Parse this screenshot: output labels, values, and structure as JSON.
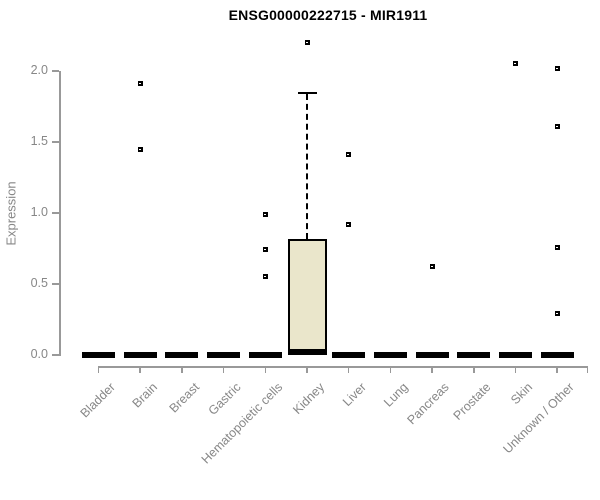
{
  "chart_data": {
    "type": "boxplot",
    "title": "ENSG00000222715 - MIR1911",
    "ylabel": "Expression",
    "xlabel": "",
    "ylim": [
      0,
      2.25
    ],
    "yticks": [
      0,
      0.5,
      1.0,
      1.5,
      2.0
    ],
    "grid": false,
    "legend": "none",
    "marker": "open-square",
    "colors": {
      "box_fill": "#EAE6CB",
      "box_border": "#000000",
      "median": "#000000",
      "axis_line": "#999999",
      "axis_text": "#878787",
      "title_text": "#000000"
    },
    "categories": [
      "Bladder",
      "Brain",
      "Breast",
      "Gastric",
      "Hematopoietic cells",
      "Kidney",
      "Liver",
      "Lung",
      "Pancreas",
      "Prostate",
      "Skin",
      "Unknown / Other"
    ],
    "boxes": [
      {
        "category": "Bladder",
        "median": 0,
        "q1": 0,
        "q3": 0,
        "whisker_low": 0,
        "whisker_high": 0,
        "outliers": []
      },
      {
        "category": "Brain",
        "median": 0,
        "q1": 0,
        "q3": 0,
        "whisker_low": 0,
        "whisker_high": 0,
        "outliers": [
          1.91,
          1.45
        ]
      },
      {
        "category": "Breast",
        "median": 0,
        "q1": 0,
        "q3": 0,
        "whisker_low": 0,
        "whisker_high": 0,
        "outliers": []
      },
      {
        "category": "Gastric",
        "median": 0,
        "q1": 0,
        "q3": 0,
        "whisker_low": 0,
        "whisker_high": 0,
        "outliers": []
      },
      {
        "category": "Hematopoietic cells",
        "median": 0,
        "q1": 0,
        "q3": 0,
        "whisker_low": 0,
        "whisker_high": 0,
        "outliers": [
          0.99,
          0.74,
          0.55
        ]
      },
      {
        "category": "Kidney",
        "median": 0.02,
        "q1": 0.01,
        "q3": 0.82,
        "whisker_low": 0,
        "whisker_high": 1.84,
        "outliers": [
          2.2
        ]
      },
      {
        "category": "Liver",
        "median": 0,
        "q1": 0,
        "q3": 0,
        "whisker_low": 0,
        "whisker_high": 0,
        "outliers": [
          1.41,
          0.92
        ]
      },
      {
        "category": "Lung",
        "median": 0,
        "q1": 0,
        "q3": 0,
        "whisker_low": 0,
        "whisker_high": 0,
        "outliers": []
      },
      {
        "category": "Pancreas",
        "median": 0,
        "q1": 0,
        "q3": 0,
        "whisker_low": 0,
        "whisker_high": 0,
        "outliers": [
          0.62
        ]
      },
      {
        "category": "Prostate",
        "median": 0,
        "q1": 0,
        "q3": 0,
        "whisker_low": 0,
        "whisker_high": 0,
        "outliers": []
      },
      {
        "category": "Skin",
        "median": 0,
        "q1": 0,
        "q3": 0,
        "whisker_low": 0,
        "whisker_high": 0,
        "outliers": [
          2.05
        ]
      },
      {
        "category": "Unknown / Other",
        "median": 0,
        "q1": 0,
        "q3": 0,
        "whisker_low": 0,
        "whisker_high": 0,
        "outliers": [
          2.02,
          1.61,
          0.76,
          0.29
        ]
      }
    ]
  }
}
